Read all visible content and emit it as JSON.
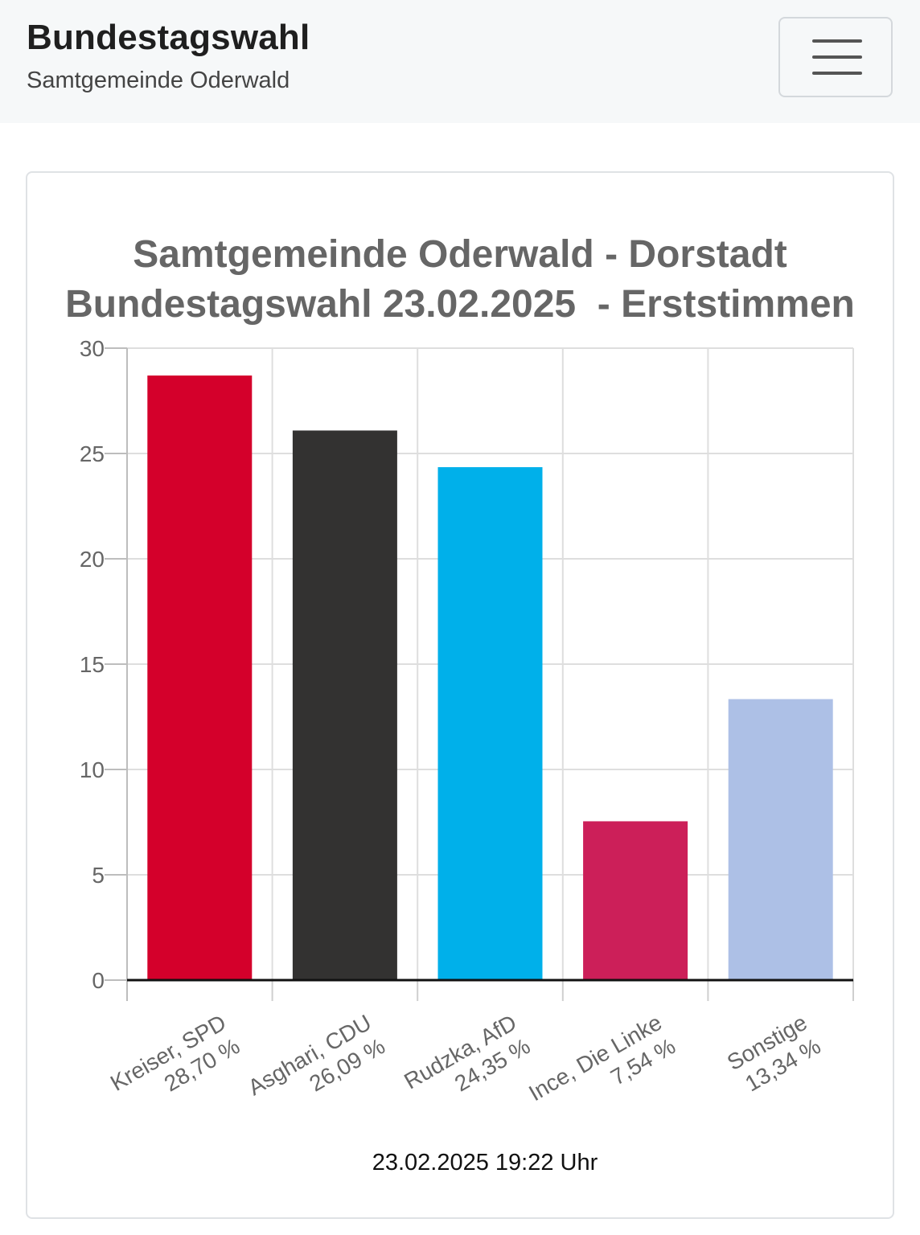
{
  "header": {
    "title": "Bundestagswahl",
    "subtitle": "Samtgemeinde Oderwald",
    "menu_icon": "hamburger-icon"
  },
  "chart_data": {
    "type": "bar",
    "title_lines": [
      "Samtgemeinde Oderwald - Dorstadt",
      "Bundestagswahl 23.02.2025  - Erststimmen"
    ],
    "categories": [
      [
        "Kreiser, SPD",
        "28,70 %"
      ],
      [
        "Asghari, CDU",
        "26,09 %"
      ],
      [
        "Rudzka, AfD",
        "24,35 %"
      ],
      [
        "Ince, Die Linke",
        "7,54 %"
      ],
      [
        "Sonstige",
        "13,34 %"
      ]
    ],
    "values": [
      28.7,
      26.09,
      24.35,
      7.54,
      13.34
    ],
    "colors": [
      "#d4002b",
      "#333231",
      "#00b0ea",
      "#cc1f59",
      "#adc0e6"
    ],
    "yticks": [
      0,
      5,
      10,
      15,
      20,
      25,
      30
    ],
    "ylim": [
      0,
      30
    ],
    "grid": true,
    "footer": "23.02.2025 19:22 Uhr"
  }
}
